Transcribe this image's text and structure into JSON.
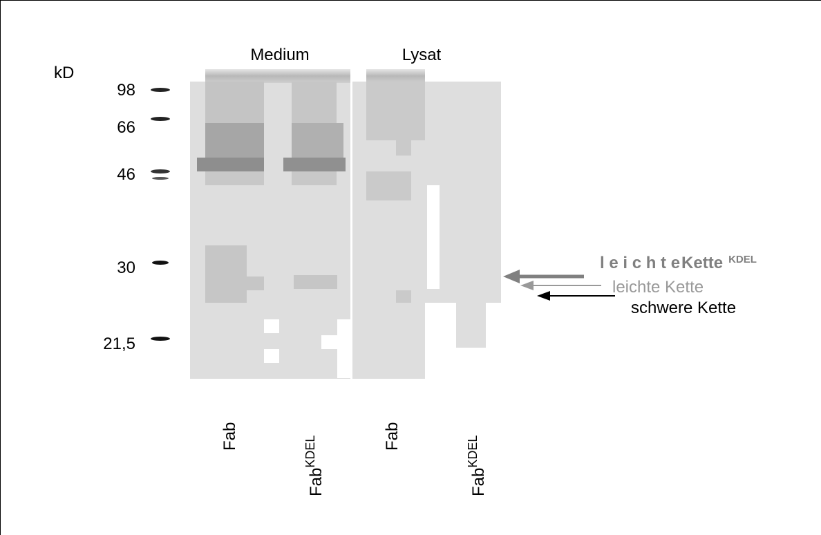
{
  "header": {
    "unit": "kD",
    "groups": [
      "Medium",
      "Lysat"
    ]
  },
  "markers": [
    "98",
    "66",
    "46",
    "30",
    "21,5"
  ],
  "lanes": [
    {
      "base": "Fab"
    },
    {
      "base": "Fab",
      "sup": "KDEL"
    },
    {
      "base": "Fab"
    },
    {
      "base": "Fab",
      "sup": "KDEL"
    }
  ],
  "annotations": [
    {
      "spaced": "l e i c h t e",
      "bold": "Kette",
      "sup": "KDEL"
    },
    {
      "text": "leichte Kette"
    },
    {
      "text": "schwere Kette"
    }
  ]
}
